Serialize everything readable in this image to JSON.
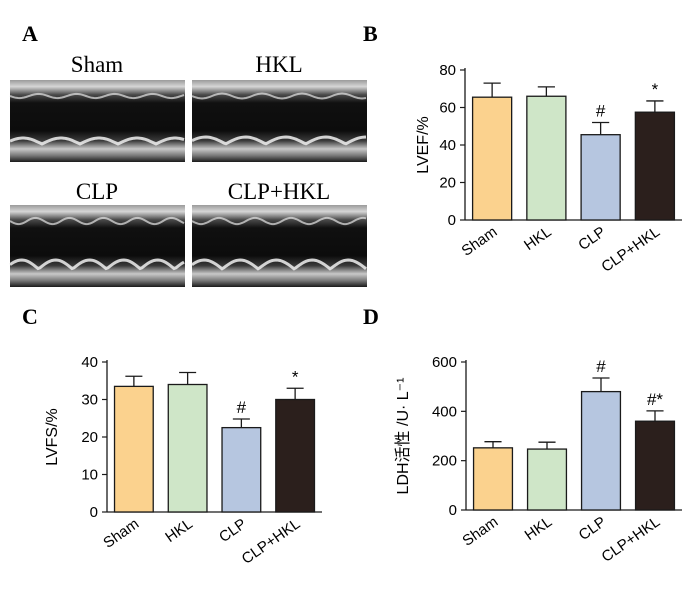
{
  "panels": {
    "a": {
      "letter": "A",
      "labels": [
        "Sham",
        "HKL",
        "CLP",
        "CLP+HKL"
      ]
    },
    "b": {
      "letter": "B"
    },
    "c": {
      "letter": "C"
    },
    "d": {
      "letter": "D"
    }
  },
  "colors": {
    "Sham": "#fbd28e",
    "HKL": "#cfe6c8",
    "CLP": "#b6c6e0",
    "CLP+HKL": "#2b1f1c",
    "axis": "#1a1a1a"
  },
  "chart_data": [
    {
      "id": "B",
      "type": "bar",
      "categories": [
        "Sham",
        "HKL",
        "CLP",
        "CLP+HKL"
      ],
      "values": [
        65.5,
        66,
        45.5,
        57.5
      ],
      "errors": [
        7.5,
        5,
        6.5,
        6
      ],
      "significance": [
        "",
        "",
        "#",
        "*"
      ],
      "ylabel": "LVEF/%",
      "ylim": [
        0,
        80
      ],
      "ticks": [
        0,
        20,
        40,
        60,
        80
      ]
    },
    {
      "id": "C",
      "type": "bar",
      "categories": [
        "Sham",
        "HKL",
        "CLP",
        "CLP+HKL"
      ],
      "values": [
        33.5,
        34,
        22.5,
        30
      ],
      "errors": [
        2.7,
        3.2,
        2.3,
        3
      ],
      "significance": [
        "",
        "",
        "#",
        "*"
      ],
      "ylabel": "LVFS/%",
      "ylim": [
        0,
        40
      ],
      "ticks": [
        0,
        10,
        20,
        30,
        40
      ]
    },
    {
      "id": "D",
      "type": "bar",
      "categories": [
        "Sham",
        "HKL",
        "CLP",
        "CLP+HKL"
      ],
      "values": [
        252,
        247,
        480,
        360
      ],
      "errors": [
        25,
        28,
        55,
        42
      ],
      "significance": [
        "",
        "",
        "#",
        "#*"
      ],
      "ylabel": "LDH活性 /U· L⁻¹",
      "ylim": [
        0,
        600
      ],
      "ticks": [
        0,
        200,
        400,
        600
      ]
    }
  ]
}
